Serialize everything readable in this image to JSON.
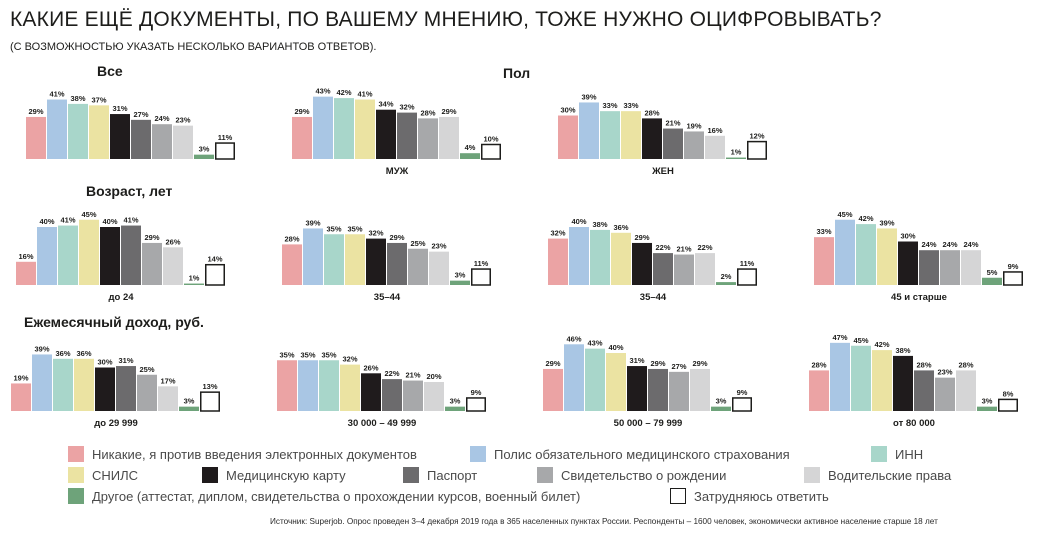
{
  "title": "КАКИЕ ЕЩЁ ДОКУМЕНТЫ, ПО ВАШЕМУ МНЕНИЮ, ТОЖЕ НУЖНО ОЦИФРОВЫВАТЬ?",
  "subtitle": "(С ВОЗМОЖНОСТЬЮ УКАЗАТЬ НЕСКОЛЬКО ВАРИАНТОВ ОТВЕТОВ).",
  "sections": {
    "all": "Все",
    "gender": "Пол",
    "age": "Возраст, лет",
    "income": "Ежемесячный доход, руб."
  },
  "colors": [
    "#eba3a4",
    "#a9c6e4",
    "#a8d6ca",
    "#ebe3a2",
    "#1f1b1c",
    "#6c6b6d",
    "#a7a8aa",
    "#d5d5d6",
    "#6ea37a",
    "#ffffff"
  ],
  "legend": [
    {
      "label": "Никакие, я против введения электронных документов"
    },
    {
      "label": "Полис обязательного медицинского страхования"
    },
    {
      "label": "ИНН"
    },
    {
      "label": "СНИЛС"
    },
    {
      "label": "Медицинскую карту"
    },
    {
      "label": "Паспорт"
    },
    {
      "label": "Свидетельство о рождении"
    },
    {
      "label": "Водительские права"
    },
    {
      "label": "Другое (аттестат, диплом, свидетельства о прохождении курсов, военный билет)"
    },
    {
      "label": "Затрудняюсь ответить"
    }
  ],
  "source": "Источник: Superjob. Опрос проведен 3–4 декабря 2019 года в 365 населенных пунктах России. Респонденты – 1600 человек, экономически активное население старше 18 лет",
  "chart_data": [
    {
      "type": "bar",
      "label": "",
      "unit": "%",
      "values": [
        29,
        41,
        38,
        37,
        31,
        27,
        24,
        23,
        3,
        11
      ]
    },
    {
      "type": "bar",
      "label": "МУЖ",
      "unit": "%",
      "values": [
        29,
        43,
        42,
        41,
        34,
        32,
        28,
        29,
        4,
        10
      ]
    },
    {
      "type": "bar",
      "label": "ЖЕН",
      "unit": "%",
      "values": [
        30,
        39,
        33,
        33,
        28,
        21,
        19,
        16,
        1,
        12
      ]
    },
    {
      "type": "bar",
      "label": "до 24",
      "unit": "%",
      "values": [
        16,
        40,
        41,
        45,
        40,
        41,
        29,
        26,
        1,
        14
      ]
    },
    {
      "type": "bar",
      "label": "35–44",
      "unit": "%",
      "values": [
        28,
        39,
        35,
        35,
        32,
        29,
        25,
        23,
        3,
        11
      ]
    },
    {
      "type": "bar",
      "label": "35–44",
      "unit": "%",
      "values": [
        32,
        40,
        38,
        36,
        29,
        22,
        21,
        22,
        2,
        11
      ]
    },
    {
      "type": "bar",
      "label": "45 и старше",
      "unit": "%",
      "values": [
        33,
        45,
        42,
        39,
        30,
        24,
        24,
        24,
        5,
        9
      ]
    },
    {
      "type": "bar",
      "label": "до 29 999",
      "unit": "%",
      "values": [
        19,
        39,
        36,
        36,
        30,
        31,
        25,
        17,
        3,
        13
      ]
    },
    {
      "type": "bar",
      "label": "30 000 – 49 999",
      "unit": "%",
      "values": [
        35,
        35,
        35,
        32,
        26,
        22,
        21,
        20,
        3,
        9
      ]
    },
    {
      "type": "bar",
      "label": "50 000 – 79 999",
      "unit": "%",
      "values": [
        29,
        46,
        43,
        40,
        31,
        29,
        27,
        29,
        3,
        9
      ]
    },
    {
      "type": "bar",
      "label": "от 80 000",
      "unit": "%",
      "values": [
        28,
        47,
        45,
        42,
        38,
        28,
        23,
        28,
        3,
        8
      ]
    }
  ]
}
